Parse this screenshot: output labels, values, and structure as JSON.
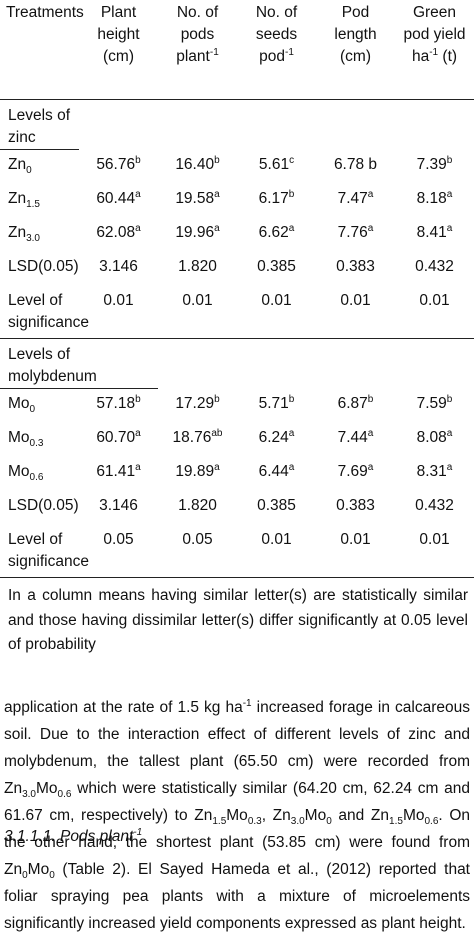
{
  "table": {
    "header": [
      [
        {
          "text": "Treatments"
        }
      ],
      [
        {
          "text": "Plant height (cm)"
        }
      ],
      [
        {
          "text": "No. of pods plant"
        },
        {
          "sup": "-1"
        }
      ],
      [
        {
          "text": "No. of seeds pod"
        },
        {
          "sup": "-1"
        }
      ],
      [
        {
          "text": "Pod length (cm)"
        }
      ],
      [
        {
          "text": "Green pod yield ha"
        },
        {
          "sup": "-1"
        },
        {
          "text": " (t)"
        }
      ]
    ],
    "sections": [
      {
        "title": "Levels of zinc",
        "rows": [
          {
            "label": [
              {
                "text": "Zn"
              },
              {
                "sub": "0"
              }
            ],
            "cells": [
              {
                "value": "56.76",
                "sup": "b"
              },
              {
                "value": "16.40",
                "sup": "b"
              },
              {
                "value": "5.61",
                "sup": "c"
              },
              {
                "value": "6.78 b"
              },
              {
                "value": "7.39",
                "sup": "b"
              }
            ]
          },
          {
            "label": [
              {
                "text": "Zn"
              },
              {
                "sub": "1.5"
              }
            ],
            "cells": [
              {
                "value": "60.44",
                "sup": "a"
              },
              {
                "value": "19.58",
                "sup": "a"
              },
              {
                "value": "6.17",
                "sup": "b"
              },
              {
                "value": "7.47",
                "sup": "a"
              },
              {
                "value": "8.18",
                "sup": "a"
              }
            ]
          },
          {
            "label": [
              {
                "text": "Zn"
              },
              {
                "sub": "3.0"
              }
            ],
            "cells": [
              {
                "value": "62.08",
                "sup": "a"
              },
              {
                "value": "19.96",
                "sup": "a"
              },
              {
                "value": "6.62",
                "sup": "a"
              },
              {
                "value": "7.76",
                "sup": "a"
              },
              {
                "value": "8.41",
                "sup": "a"
              }
            ]
          },
          {
            "label": [
              {
                "text": "LSD(0.05)"
              }
            ],
            "cells": [
              {
                "value": "3.146"
              },
              {
                "value": "1.820"
              },
              {
                "value": "0.385"
              },
              {
                "value": "0.383"
              },
              {
                "value": "0.432"
              }
            ]
          },
          {
            "label": [
              {
                "text": "Level of significance"
              }
            ],
            "cells": [
              {
                "value": "0.01"
              },
              {
                "value": "0.01"
              },
              {
                "value": "0.01"
              },
              {
                "value": "0.01"
              },
              {
                "value": "0.01"
              }
            ]
          }
        ]
      },
      {
        "title": "Levels of molybdenum",
        "rows": [
          {
            "label": [
              {
                "text": "Mo"
              },
              {
                "sub": "0"
              }
            ],
            "cells": [
              {
                "value": "57.18",
                "sup": "b"
              },
              {
                "value": "17.29",
                "sup": "b"
              },
              {
                "value": "5.71",
                "sup": "b"
              },
              {
                "value": "6.87",
                "sup": "b"
              },
              {
                "value": "7.59",
                "sup": "b"
              }
            ]
          },
          {
            "label": [
              {
                "text": "Mo"
              },
              {
                "sub": "0.3"
              }
            ],
            "cells": [
              {
                "value": "60.70",
                "sup": "a"
              },
              {
                "value": "18.76",
                "sup": "ab"
              },
              {
                "value": "6.24",
                "sup": "a"
              },
              {
                "value": "7.44",
                "sup": "a"
              },
              {
                "value": "8.08",
                "sup": "a"
              }
            ]
          },
          {
            "label": [
              {
                "text": "Mo"
              },
              {
                "sub": "0.6"
              }
            ],
            "cells": [
              {
                "value": "61.41",
                "sup": "a"
              },
              {
                "value": "19.89",
                "sup": "a"
              },
              {
                "value": "6.44",
                "sup": "a"
              },
              {
                "value": "7.69",
                "sup": "a"
              },
              {
                "value": "8.31",
                "sup": "a"
              }
            ]
          },
          {
            "label": [
              {
                "text": "LSD(0.05)"
              }
            ],
            "cells": [
              {
                "value": "3.146"
              },
              {
                "value": "1.820"
              },
              {
                "value": "0.385"
              },
              {
                "value": "0.383"
              },
              {
                "value": "0.432"
              }
            ]
          },
          {
            "label": [
              {
                "text": "Level of significance"
              }
            ],
            "cells": [
              {
                "value": "0.05"
              },
              {
                "value": "0.05"
              },
              {
                "value": "0.01"
              },
              {
                "value": "0.01"
              },
              {
                "value": "0.01"
              }
            ]
          }
        ]
      }
    ],
    "footnote": "In a column means having similar letter(s) are statistically similar and those having dissimilar letter(s) differ significantly at 0.05 level of probability"
  },
  "paragraph": [
    {
      "text": "application at the rate of 1.5 kg ha"
    },
    {
      "sup": "-1"
    },
    {
      "text": " increased forage in calcareous soil. Due to the interaction effect of different levels of zinc and molybdenum, the tallest plant (65.50 cm) were recorded from Zn"
    },
    {
      "sub": "3.0"
    },
    {
      "text": "Mo"
    },
    {
      "sub": "0.6"
    },
    {
      "text": " which were statistically similar (64.20 cm, 62.24 cm and 61.67 cm, respectively) to Zn"
    },
    {
      "sub": "1.5"
    },
    {
      "text": "Mo"
    },
    {
      "sub": "0.3"
    },
    {
      "text": ", Zn"
    },
    {
      "sub": "3.0"
    },
    {
      "text": "Mo"
    },
    {
      "sub": "0"
    },
    {
      "text": " and Zn"
    },
    {
      "sub": "1.5"
    },
    {
      "text": "Mo"
    },
    {
      "sub": "0.6"
    },
    {
      "text": ". On the other hand, the shortest plant (53.85 cm) were found from Zn"
    },
    {
      "sub": "0"
    },
    {
      "text": "Mo"
    },
    {
      "sub": "0"
    },
    {
      "text": " (Table 2). El Sayed Hameda et al., (2012) reported that foliar spraying pea plants with a mixture of microelements significantly increased yield components expressed as plant height."
    }
  ],
  "heading": [
    {
      "text": "3.1.1.1. Pods plant"
    },
    {
      "sup": "-1"
    }
  ]
}
